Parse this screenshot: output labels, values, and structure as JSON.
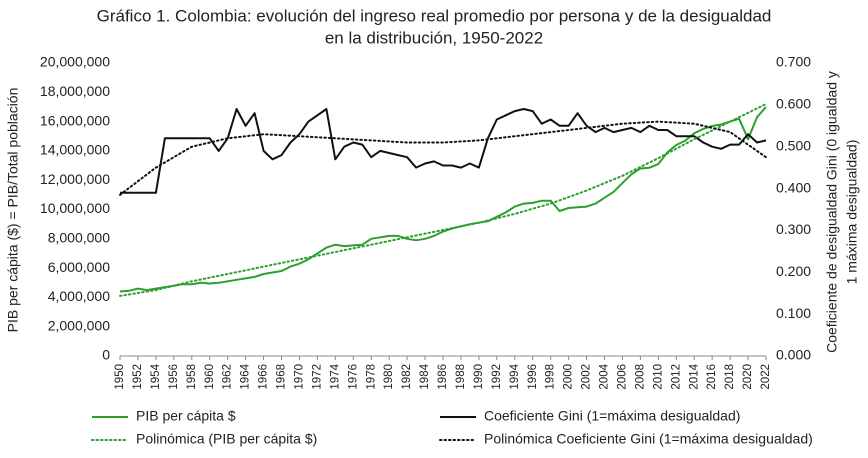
{
  "chart_data": {
    "type": "line",
    "title": [
      "Gráfico 1. Colombia: evolución del ingreso real promedio por persona y de la desigualdad",
      "en la distribución, 1950-2022"
    ],
    "y_label": "PIB per cápita ($) = PIB/Total población",
    "y2_label": [
      "Coeficiente de desigualdad Gini (0 igualdad y",
      "1 máxima desigualdad)"
    ],
    "x": [
      1950,
      1951,
      1952,
      1953,
      1954,
      1955,
      1956,
      1957,
      1958,
      1959,
      1960,
      1961,
      1962,
      1963,
      1964,
      1965,
      1966,
      1967,
      1968,
      1969,
      1970,
      1971,
      1972,
      1973,
      1974,
      1975,
      1976,
      1977,
      1978,
      1979,
      1980,
      1981,
      1982,
      1983,
      1984,
      1985,
      1986,
      1987,
      1988,
      1989,
      1990,
      1991,
      1992,
      1993,
      1994,
      1995,
      1996,
      1997,
      1998,
      1999,
      2000,
      2001,
      2002,
      2003,
      2004,
      2005,
      2006,
      2007,
      2008,
      2009,
      2010,
      2011,
      2012,
      2013,
      2014,
      2015,
      2016,
      2017,
      2018,
      2019,
      2020,
      2021,
      2022
    ],
    "xlim": [
      1950,
      2022
    ],
    "xticks": [
      1950,
      1952,
      1954,
      1956,
      1958,
      1960,
      1962,
      1964,
      1966,
      1968,
      1970,
      1972,
      1974,
      1976,
      1978,
      1980,
      1982,
      1984,
      1986,
      1988,
      1990,
      1992,
      1994,
      1996,
      1998,
      2000,
      2002,
      2004,
      2006,
      2008,
      2010,
      2012,
      2014,
      2016,
      2018,
      2020,
      2022
    ],
    "ylim": [
      0,
      20000000
    ],
    "yticks": [
      0,
      {
        "value": 2000000,
        "label": "2,000,000"
      },
      {
        "value": 4000000,
        "label": "4,000,000"
      },
      {
        "value": 6000000,
        "label": "6,000,000"
      },
      {
        "value": 8000000,
        "label": "8,000,000"
      },
      {
        "value": 10000000,
        "label": "10,000,000"
      },
      {
        "value": 12000000,
        "label": "12,000,000"
      },
      {
        "value": 14000000,
        "label": "14,000,000"
      },
      {
        "value": 16000000,
        "label": "16,000,000"
      },
      {
        "value": 18000000,
        "label": "18,000,000"
      },
      {
        "value": 20000000,
        "label": "20,000,000"
      }
    ],
    "y2lim": [
      0,
      0.7
    ],
    "y2ticks": [
      {
        "value": 0,
        "label": "0.000"
      },
      {
        "value": 0.1,
        "label": "0.100"
      },
      {
        "value": 0.2,
        "label": "0.200"
      },
      {
        "value": 0.3,
        "label": "0.300"
      },
      {
        "value": 0.4,
        "label": "0.400"
      },
      {
        "value": 0.5,
        "label": "0.500"
      },
      {
        "value": 0.6,
        "label": "0.600"
      },
      {
        "value": 0.7,
        "label": "0.700"
      }
    ],
    "series": [
      {
        "name": "PIB per cápita $",
        "color": "#2ca02c",
        "dash": "solid",
        "values": [
          4400000,
          4450000,
          4600000,
          4500000,
          4600000,
          4700000,
          4800000,
          4900000,
          4900000,
          5000000,
          4950000,
          5000000,
          5100000,
          5200000,
          5300000,
          5400000,
          5600000,
          5700000,
          5800000,
          6100000,
          6300000,
          6600000,
          7000000,
          7400000,
          7600000,
          7500000,
          7550000,
          7600000,
          8000000,
          8100000,
          8200000,
          8200000,
          8000000,
          7900000,
          8000000,
          8200000,
          8500000,
          8700000,
          8850000,
          9000000,
          9100000,
          9200000,
          9500000,
          9800000,
          10200000,
          10400000,
          10450000,
          10600000,
          10600000,
          9900000,
          10100000,
          10150000,
          10200000,
          10400000,
          10800000,
          11200000,
          11800000,
          12400000,
          12800000,
          12850000,
          13100000,
          13900000,
          14400000,
          14700000,
          15200000,
          15500000,
          15700000,
          15800000,
          16000000,
          16200000,
          14800000,
          16300000,
          17000000
        ]
      },
      {
        "name": "Coeficiente Gini (1=máxima desigualdad)",
        "color": "#111111",
        "dash": "solid",
        "axis": "y2",
        "values": [
          0.39,
          0.39,
          0.39,
          0.39,
          0.39,
          0.52,
          0.52,
          0.52,
          0.52,
          0.52,
          0.52,
          0.49,
          0.52,
          0.59,
          0.55,
          0.58,
          0.49,
          0.47,
          0.48,
          0.51,
          0.53,
          0.56,
          0.575,
          0.59,
          0.47,
          0.5,
          0.51,
          0.505,
          0.475,
          0.49,
          0.485,
          0.48,
          0.475,
          0.45,
          0.46,
          0.465,
          0.455,
          0.455,
          0.45,
          0.46,
          0.45,
          0.52,
          0.565,
          0.575,
          0.585,
          0.59,
          0.585,
          0.555,
          0.565,
          0.55,
          0.55,
          0.58,
          0.55,
          0.535,
          0.545,
          0.535,
          0.54,
          0.545,
          0.535,
          0.55,
          0.54,
          0.54,
          0.525,
          0.525,
          0.525,
          0.51,
          0.5,
          0.495,
          0.505,
          0.505,
          0.53,
          0.51,
          0.515
        ]
      },
      {
        "name": "Polinómica (PIB per cápita $)",
        "color": "#2ca02c",
        "dash": "dotted",
        "x": [
          1950,
          1954,
          1958,
          1962,
          1966,
          1970,
          1974,
          1978,
          1982,
          1986,
          1990,
          1994,
          1998,
          2002,
          2006,
          2010,
          2014,
          2018,
          2022
        ],
        "values": [
          4100000,
          4500000,
          5100000,
          5600000,
          6100000,
          6600000,
          7100000,
          7600000,
          8100000,
          8600000,
          9100000,
          9700000,
          10400000,
          11300000,
          12300000,
          13500000,
          14800000,
          16000000,
          17200000
        ]
      },
      {
        "name": "Polinómica Coeficiente Gini (1=máxima desigualdad)",
        "color": "#111111",
        "dash": "dotted",
        "axis": "y2",
        "x": [
          1950,
          1954,
          1958,
          1962,
          1966,
          1970,
          1974,
          1978,
          1982,
          1986,
          1990,
          1994,
          1998,
          2002,
          2006,
          2010,
          2014,
          2018,
          2022
        ],
        "values": [
          0.385,
          0.45,
          0.5,
          0.52,
          0.53,
          0.525,
          0.52,
          0.515,
          0.51,
          0.51,
          0.515,
          0.525,
          0.535,
          0.545,
          0.555,
          0.56,
          0.555,
          0.535,
          0.475
        ]
      }
    ]
  }
}
